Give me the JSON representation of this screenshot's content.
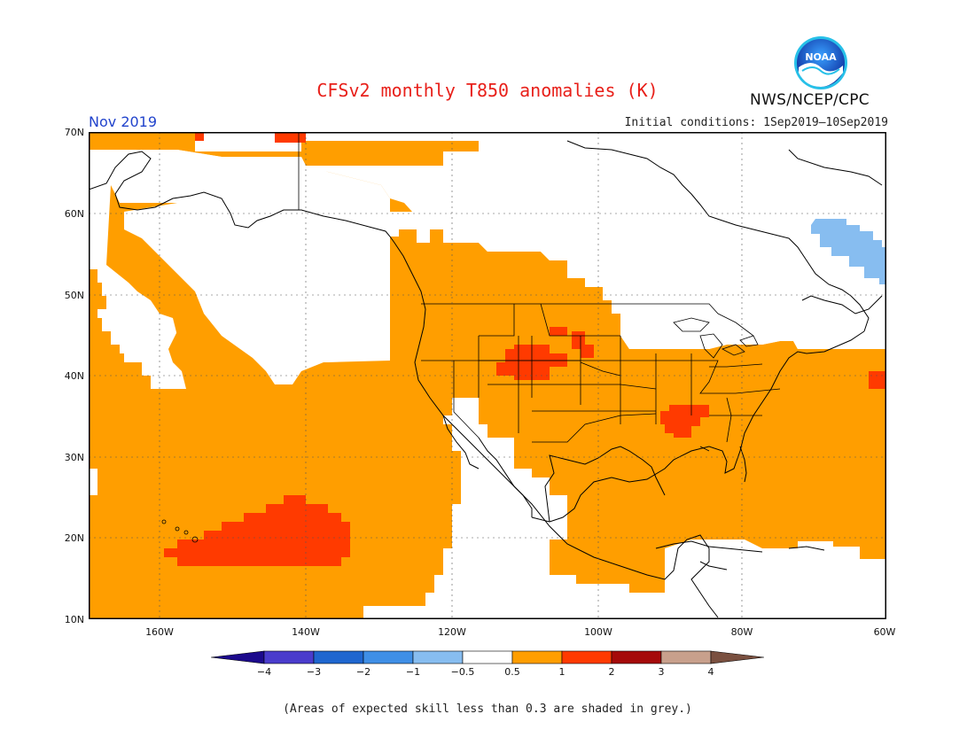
{
  "title": "CFSv2 monthly T850 anomalies (K)",
  "org": "NWS/NCEP/CPC",
  "logo_text": "NOAA",
  "month": "Nov 2019",
  "initial_conditions": "Initial conditions: 1Sep2019—10Sep2019",
  "lat_labels": [
    "70N",
    "60N",
    "50N",
    "40N",
    "30N",
    "20N",
    "10N"
  ],
  "lon_labels": [
    "160W",
    "140W",
    "120W",
    "100W",
    "80W",
    "60W"
  ],
  "colorbar": {
    "labels": [
      "−4",
      "−3",
      "−2",
      "−1",
      "−0.5",
      "0.5",
      "1",
      "2",
      "3",
      "4"
    ],
    "colors": [
      "#1c0a8c",
      "#4a3ccc",
      "#1f66cf",
      "#3f8fe6",
      "#87bdf0",
      "#ffffff",
      "#ff9e00",
      "#ff3a00",
      "#a50a0a",
      "#c8a08c",
      "#7a5040"
    ]
  },
  "note": "(Areas of expected skill less than 0.3 are shaded in grey.)",
  "colors": {
    "title": "#e8201a",
    "month": "#2244cc",
    "orange": "#ff9e00",
    "red": "#ff3a00",
    "blue": "#87bdf0"
  }
}
